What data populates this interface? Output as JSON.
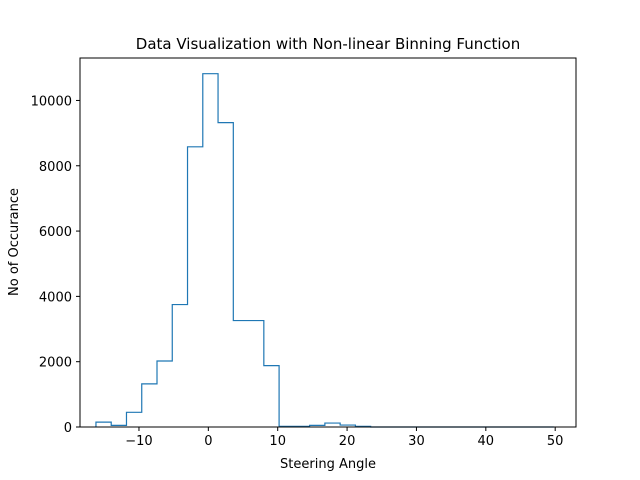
{
  "chart_data": {
    "type": "histogram",
    "title": "Data Visualization with Non-linear Binning Function",
    "xlabel": "Steering Angle",
    "ylabel": "No of Occurance",
    "xlim": [
      -18.5,
      53.0
    ],
    "ylim": [
      0,
      11300
    ],
    "xticks": [
      -10,
      0,
      10,
      20,
      30,
      40,
      50
    ],
    "yticks": [
      0,
      2000,
      4000,
      6000,
      8000,
      10000
    ],
    "grid": false,
    "histtype": "step",
    "color": "#1f77b4",
    "bin_edges": [
      -16.2,
      -14.0,
      -11.8,
      -9.6,
      -7.4,
      -5.2,
      -3.0,
      -0.8,
      1.4,
      3.6,
      5.8,
      8.0,
      10.2,
      12.4,
      14.6,
      16.8,
      19.0,
      21.2,
      23.4,
      25.6,
      27.8,
      30.0,
      32.2,
      34.4,
      36.6,
      38.8,
      41.0,
      43.2,
      45.4,
      47.6,
      49.8
    ],
    "counts": [
      150,
      50,
      450,
      1320,
      2020,
      3750,
      8580,
      10820,
      9320,
      3260,
      3260,
      1880,
      20,
      20,
      50,
      120,
      60,
      20,
      0,
      0,
      0,
      0,
      0,
      0,
      0,
      0,
      0,
      0,
      0,
      0
    ]
  }
}
